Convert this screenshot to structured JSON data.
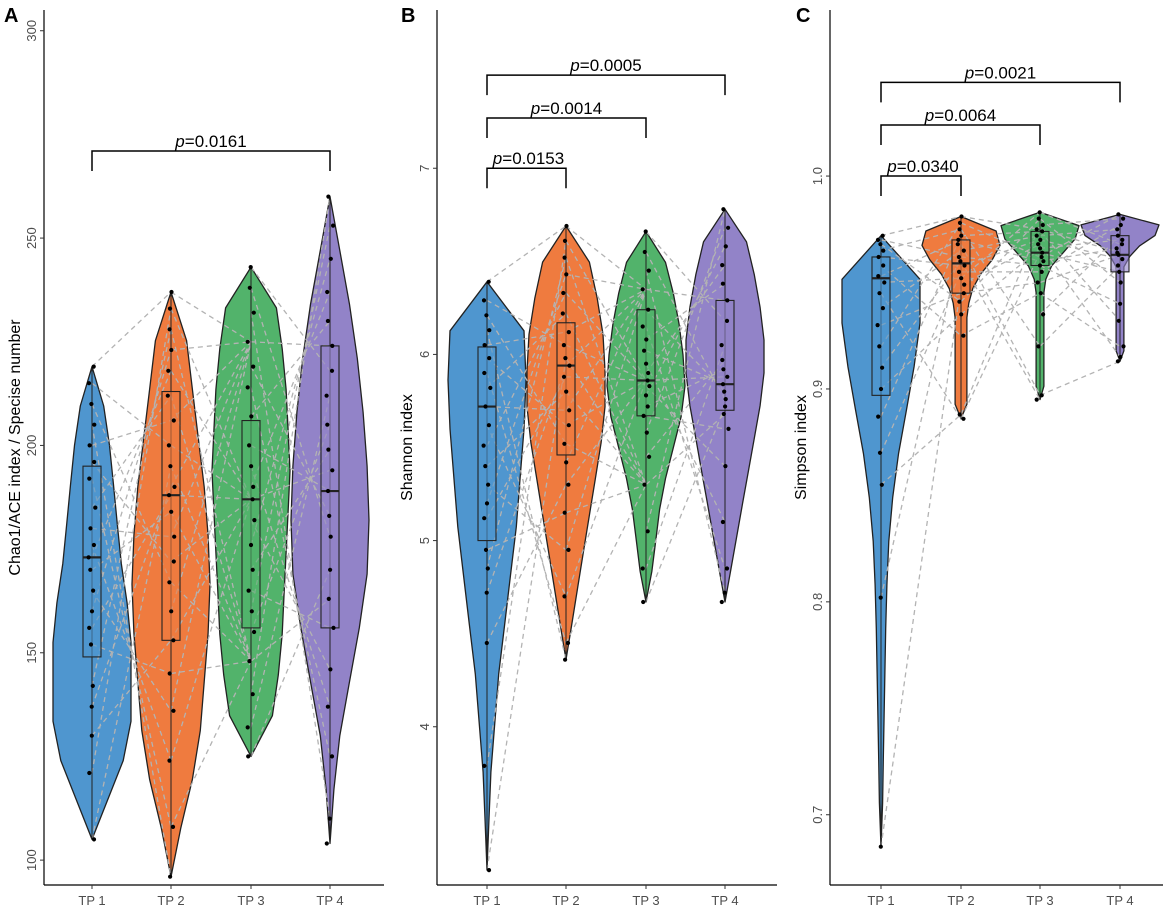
{
  "colors": {
    "tp1": "#4f96cf",
    "tp2": "#ef7b3f",
    "tp3": "#52b36b",
    "tp4": "#9283c8",
    "dashed": "#b3b3b3",
    "axis": "#000000"
  },
  "chart_data": [
    {
      "panel": "A",
      "type": "violin",
      "ylabel": "Chao1/ACE index / Specise number",
      "ylim": [
        94,
        305
      ],
      "yticks": [
        100,
        150,
        200,
        250,
        300
      ],
      "categories": [
        "TP 1",
        "TP 2",
        "TP 3",
        "TP 4"
      ],
      "series": [
        {
          "name": "TP 1",
          "min": 105,
          "q1": 149,
          "median": 173,
          "q3": 195,
          "max": 219,
          "points": [
            219,
            215,
            210,
            205,
            200,
            196,
            192,
            185,
            180,
            176,
            173,
            170,
            165,
            160,
            156,
            152,
            142,
            137,
            130,
            121,
            105
          ]
        },
        {
          "name": "TP 2",
          "min": 96,
          "q1": 153,
          "median": 188,
          "q3": 213,
          "max": 237,
          "points": [
            237,
            233,
            228,
            223,
            218,
            212,
            206,
            200,
            195,
            190,
            188,
            184,
            178,
            172,
            167,
            160,
            153,
            145,
            136,
            124,
            108,
            96
          ]
        },
        {
          "name": "TP 3",
          "min": 125,
          "q1": 156,
          "median": 187,
          "q3": 206,
          "max": 243,
          "points": [
            243,
            238,
            232,
            225,
            219,
            214,
            207,
            200,
            195,
            190,
            187,
            182,
            176,
            170,
            165,
            160,
            155,
            148,
            140,
            132,
            125
          ]
        },
        {
          "name": "TP 4",
          "min": 104,
          "q1": 156,
          "median": 189,
          "q3": 224,
          "max": 260,
          "points": [
            260,
            253,
            245,
            237,
            230,
            224,
            218,
            212,
            205,
            199,
            194,
            189,
            183,
            178,
            170,
            163,
            156,
            146,
            137,
            125,
            110,
            104
          ]
        }
      ],
      "violin_width": [
        {
          "frac": [
            0,
            0.4,
            0.8,
            1.0,
            1.0,
            1.0,
            0.9,
            0.75,
            0.65,
            0.55,
            0.45,
            0.3,
            0
          ]
        },
        {
          "frac": [
            0,
            0.25,
            0.55,
            0.75,
            0.85,
            0.95,
            1.0,
            0.95,
            0.85,
            0.7,
            0.55,
            0.4,
            0
          ]
        },
        {
          "frac": [
            0,
            0.55,
            0.7,
            0.8,
            0.85,
            0.9,
            0.95,
            1.0,
            0.95,
            0.9,
            0.8,
            0.65,
            0
          ]
        },
        {
          "frac": [
            0,
            0.1,
            0.25,
            0.5,
            0.75,
            0.95,
            1.0,
            0.95,
            0.85,
            0.7,
            0.5,
            0.25,
            0
          ]
        }
      ],
      "comparisons": [
        {
          "from": "TP 1",
          "to": "TP 4",
          "y": 271,
          "p_symbol": "p",
          "p_value": "=0.0161"
        }
      ]
    },
    {
      "panel": "B",
      "type": "violin",
      "ylabel": "Shannon index",
      "ylim": [
        3.15,
        7.85
      ],
      "yticks": [
        4,
        5,
        6,
        7
      ],
      "categories": [
        "TP 1",
        "TP 2",
        "TP 3",
        "TP 4"
      ],
      "series": [
        {
          "name": "TP 1",
          "min": 3.23,
          "q1": 5.0,
          "median": 5.72,
          "q3": 6.04,
          "max": 6.39,
          "points": [
            6.39,
            6.29,
            6.21,
            6.13,
            6.05,
            5.98,
            5.9,
            5.82,
            5.72,
            5.62,
            5.51,
            5.4,
            5.3,
            5.2,
            5.12,
            4.95,
            4.85,
            4.72,
            4.45,
            3.79,
            3.23
          ]
        },
        {
          "name": "TP 2",
          "min": 4.36,
          "q1": 5.46,
          "median": 5.94,
          "q3": 6.17,
          "max": 6.69,
          "points": [
            6.69,
            6.61,
            6.52,
            6.43,
            6.33,
            6.22,
            6.12,
            6.05,
            5.98,
            5.94,
            5.88,
            5.8,
            5.7,
            5.62,
            5.52,
            5.42,
            5.3,
            5.15,
            4.95,
            4.7,
            4.45,
            4.36
          ]
        },
        {
          "name": "TP 3",
          "min": 4.67,
          "q1": 5.67,
          "median": 5.86,
          "q3": 6.24,
          "max": 6.66,
          "points": [
            6.66,
            6.55,
            6.45,
            6.35,
            6.24,
            6.15,
            6.08,
            6.02,
            5.95,
            5.9,
            5.86,
            5.83,
            5.78,
            5.72,
            5.67,
            5.58,
            5.45,
            5.3,
            5.05,
            4.85,
            4.67
          ]
        },
        {
          "name": "TP 4",
          "min": 4.67,
          "q1": 5.7,
          "median": 5.84,
          "q3": 6.29,
          "max": 6.78,
          "points": [
            6.78,
            6.68,
            6.58,
            6.48,
            6.38,
            6.29,
            6.18,
            6.05,
            5.97,
            5.92,
            5.88,
            5.84,
            5.8,
            5.76,
            5.72,
            5.68,
            5.6,
            5.4,
            5.1,
            4.85,
            4.72,
            4.67
          ]
        }
      ],
      "violin_width": [
        {
          "frac": [
            0,
            0.05,
            0.1,
            0.2,
            0.3,
            0.45,
            0.6,
            0.75,
            0.85,
            0.95,
            1.0,
            0.95,
            0
          ]
        },
        {
          "frac": [
            0,
            0.15,
            0.3,
            0.45,
            0.6,
            0.75,
            0.9,
            1.0,
            1.0,
            0.95,
            0.8,
            0.6,
            0
          ]
        },
        {
          "frac": [
            0,
            0.15,
            0.25,
            0.35,
            0.5,
            0.7,
            0.9,
            1.0,
            0.95,
            0.85,
            0.7,
            0.5,
            0
          ]
        },
        {
          "frac": [
            0,
            0.15,
            0.3,
            0.45,
            0.6,
            0.75,
            0.9,
            1.0,
            1.0,
            0.9,
            0.75,
            0.55,
            0
          ]
        }
      ],
      "comparisons": [
        {
          "from": "TP 1",
          "to": "TP 4",
          "y": 7.5,
          "p_symbol": "p",
          "p_value": "=0.0005"
        },
        {
          "from": "TP 1",
          "to": "TP 3",
          "y": 7.27,
          "p_symbol": "p",
          "p_value": "=0.0014"
        },
        {
          "from": "TP 1",
          "to": "TP 2",
          "y": 7.0,
          "p_symbol": "p",
          "p_value": "=0.0153"
        }
      ]
    },
    {
      "panel": "C",
      "type": "violin",
      "ylabel": "Simpson index",
      "ylim": [
        0.667,
        1.078
      ],
      "yticks": [
        0.7,
        0.8,
        0.9,
        1.0
      ],
      "tick_labels": [
        "0.7",
        "0.8",
        "0.9",
        "1.0"
      ],
      "categories": [
        "TP 1",
        "TP 2",
        "TP 3",
        "TP 4"
      ],
      "series": [
        {
          "name": "TP 1",
          "min": 0.685,
          "q1": 0.897,
          "median": 0.952,
          "q3": 0.962,
          "max": 0.972,
          "points": [
            0.972,
            0.97,
            0.968,
            0.965,
            0.962,
            0.958,
            0.953,
            0.95,
            0.945,
            0.938,
            0.93,
            0.92,
            0.91,
            0.9,
            0.887,
            0.87,
            0.855,
            0.802,
            0.685
          ]
        },
        {
          "name": "TP 2",
          "min": 0.886,
          "q1": 0.945,
          "median": 0.959,
          "q3": 0.97,
          "max": 0.981,
          "points": [
            0.981,
            0.978,
            0.975,
            0.972,
            0.97,
            0.968,
            0.965,
            0.962,
            0.96,
            0.958,
            0.955,
            0.952,
            0.949,
            0.945,
            0.941,
            0.935,
            0.925,
            0.888,
            0.886
          ]
        },
        {
          "name": "TP 3",
          "min": 0.895,
          "q1": 0.958,
          "median": 0.964,
          "q3": 0.974,
          "max": 0.983,
          "points": [
            0.983,
            0.98,
            0.977,
            0.975,
            0.974,
            0.972,
            0.97,
            0.968,
            0.966,
            0.964,
            0.962,
            0.96,
            0.958,
            0.955,
            0.95,
            0.945,
            0.935,
            0.92,
            0.897,
            0.895
          ]
        },
        {
          "name": "TP 4",
          "min": 0.913,
          "q1": 0.955,
          "median": 0.963,
          "q3": 0.972,
          "max": 0.982,
          "points": [
            0.982,
            0.98,
            0.977,
            0.975,
            0.972,
            0.97,
            0.968,
            0.966,
            0.964,
            0.963,
            0.961,
            0.958,
            0.955,
            0.95,
            0.94,
            0.932,
            0.92,
            0.915,
            0.913
          ]
        }
      ],
      "violin_width": [
        {
          "frac": [
            0,
            0.04,
            0.06,
            0.08,
            0.1,
            0.12,
            0.15,
            0.2,
            0.3,
            0.45,
            0.65,
            0.85,
            1.0,
            1.0,
            0
          ]
        },
        {
          "frac": [
            0,
            0.15,
            0.15,
            0.15,
            0.15,
            0.15,
            0.15,
            0.15,
            0.2,
            0.3,
            0.5,
            0.8,
            1.0,
            0.9,
            0
          ]
        },
        {
          "frac": [
            0,
            0.1,
            0.1,
            0.1,
            0.1,
            0.1,
            0.1,
            0.1,
            0.1,
            0.15,
            0.3,
            0.6,
            0.9,
            1.0,
            0
          ]
        },
        {
          "frac": [
            0,
            0.1,
            0.1,
            0.1,
            0.1,
            0.1,
            0.1,
            0.1,
            0.1,
            0.1,
            0.25,
            0.5,
            0.9,
            1.0,
            0
          ]
        }
      ],
      "comparisons": [
        {
          "from": "TP 1",
          "to": "TP 4",
          "y": 1.044,
          "p_symbol": "p",
          "p_value": "=0.0021"
        },
        {
          "from": "TP 1",
          "to": "TP 3",
          "y": 1.024,
          "p_symbol": "p",
          "p_value": "=0.0064"
        },
        {
          "from": "TP 1",
          "to": "TP 2",
          "y": 1.0,
          "p_symbol": "p",
          "p_value": "=0.0340"
        }
      ]
    }
  ]
}
